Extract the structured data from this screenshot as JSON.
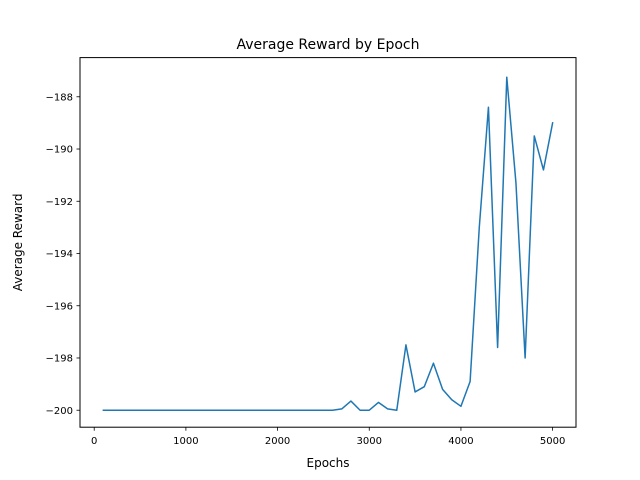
{
  "chart_data": {
    "type": "line",
    "title": "Average Reward by Epoch",
    "xlabel": "Epochs",
    "ylabel": "Average Reward",
    "xlim": [
      -155,
      5255
    ],
    "ylim": [
      -200.65,
      -186.5
    ],
    "xticks": [
      0,
      1000,
      2000,
      3000,
      4000,
      5000
    ],
    "xtick_labels": [
      "0",
      "1000",
      "2000",
      "3000",
      "4000",
      "5000"
    ],
    "yticks": [
      -200,
      -198,
      -196,
      -194,
      -192,
      -190,
      -188
    ],
    "ytick_labels": [
      "−200",
      "−198",
      "−196",
      "−194",
      "−192",
      "−190",
      "−188"
    ],
    "grid": false,
    "legend": "none",
    "series": [
      {
        "color": "#1f77b4",
        "x": [
          100,
          200,
          300,
          400,
          500,
          600,
          700,
          800,
          900,
          1000,
          1100,
          1200,
          1300,
          1400,
          1500,
          1600,
          1700,
          1800,
          1900,
          2000,
          2100,
          2200,
          2300,
          2400,
          2500,
          2600,
          2700,
          2800,
          2900,
          3000,
          3100,
          3200,
          3300,
          3400,
          3500,
          3600,
          3700,
          3800,
          3900,
          4000,
          4100,
          4200,
          4300,
          4400,
          4500,
          4600,
          4700,
          4800,
          4900,
          5000
        ],
        "y": [
          -200,
          -200,
          -200,
          -200,
          -200,
          -200,
          -200,
          -200,
          -200,
          -200,
          -200,
          -200,
          -200,
          -200,
          -200,
          -200,
          -200,
          -200,
          -200,
          -200,
          -200,
          -200,
          -200,
          -200,
          -200,
          -200,
          -199.95,
          -199.65,
          -200,
          -200,
          -199.7,
          -199.95,
          -200,
          -197.5,
          -199.3,
          -199.1,
          -198.2,
          -199.2,
          -199.6,
          -199.85,
          -198.9,
          -193,
          -188.4,
          -197.6,
          -187.25,
          -191.3,
          -198,
          -189.5,
          -190.8,
          -189
        ]
      }
    ]
  }
}
